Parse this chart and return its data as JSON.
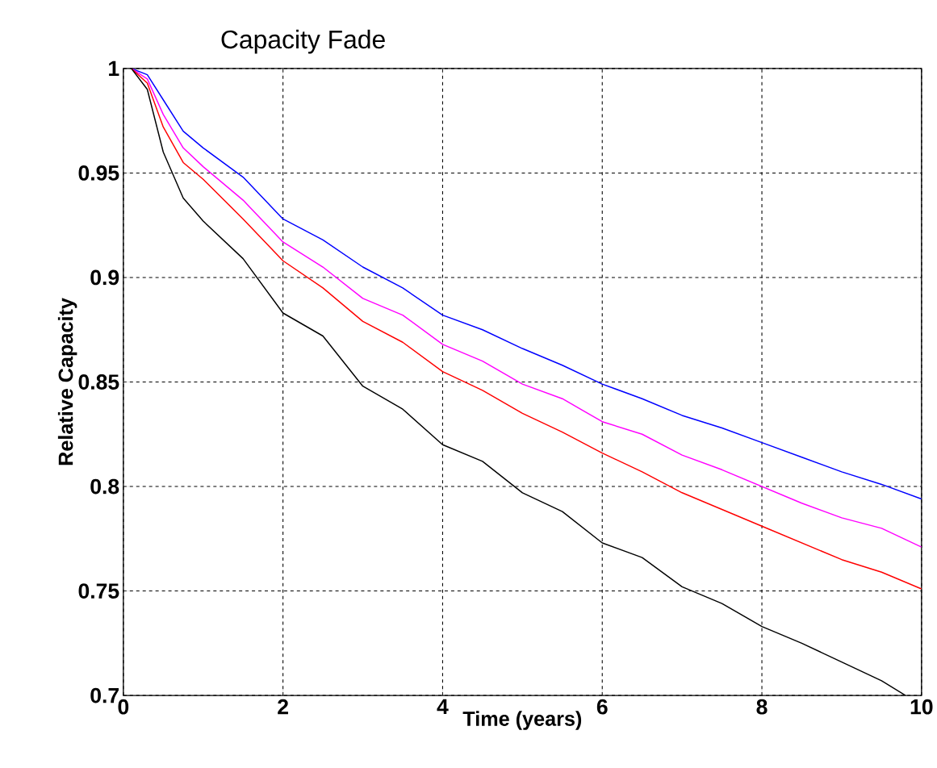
{
  "chart_data": {
    "type": "line",
    "title": "Capacity Fade",
    "xlabel": "Time (years)",
    "ylabel": "Relative Capacity",
    "x": [
      0.1,
      0.3,
      0.5,
      0.75,
      1,
      1.5,
      2,
      2.5,
      3,
      3.5,
      4,
      4.5,
      5,
      5.5,
      6,
      6.5,
      7,
      7.5,
      8,
      8.5,
      9,
      9.5,
      10
    ],
    "series": [
      {
        "color": "#0000ff",
        "values": [
          1,
          0.997,
          0.985,
          0.97,
          0.962,
          0.948,
          0.928,
          0.918,
          0.905,
          0.895,
          0.882,
          0.875,
          0.866,
          0.858,
          0.849,
          0.842,
          0.834,
          0.828,
          0.821,
          0.814,
          0.807,
          0.801,
          0.794
        ]
      },
      {
        "color": "#ff00ff",
        "values": [
          1,
          0.995,
          0.978,
          0.962,
          0.953,
          0.937,
          0.917,
          0.905,
          0.89,
          0.882,
          0.868,
          0.86,
          0.849,
          0.842,
          0.831,
          0.825,
          0.815,
          0.808,
          0.8,
          0.792,
          0.785,
          0.78,
          0.771
        ]
      },
      {
        "color": "#ff0000",
        "values": [
          1,
          0.993,
          0.972,
          0.955,
          0.947,
          0.928,
          0.908,
          0.895,
          0.879,
          0.869,
          0.855,
          0.846,
          0.835,
          0.826,
          0.816,
          0.807,
          0.797,
          0.789,
          0.781,
          0.773,
          0.765,
          0.759,
          0.751
        ]
      },
      {
        "color": "#000000",
        "x": [
          0.1,
          0.3,
          0.5,
          0.75,
          1,
          1.5,
          2,
          2.5,
          3,
          3.5,
          4,
          4.5,
          5,
          5.5,
          6,
          6.5,
          7,
          7.5,
          8,
          8.5,
          9,
          9.5,
          9.8
        ],
        "values": [
          1,
          0.99,
          0.96,
          0.938,
          0.927,
          0.909,
          0.883,
          0.872,
          0.848,
          0.837,
          0.82,
          0.812,
          0.797,
          0.788,
          0.773,
          0.766,
          0.752,
          0.744,
          0.733,
          0.725,
          0.716,
          0.707,
          0.7
        ]
      }
    ],
    "xlim": [
      0,
      10
    ],
    "ylim": [
      0.7,
      1
    ],
    "xticks": [
      0,
      2,
      4,
      6,
      8,
      10
    ],
    "yticks": [
      0.7,
      0.75,
      0.8,
      0.85,
      0.9,
      0.95,
      1
    ],
    "grid": true
  }
}
